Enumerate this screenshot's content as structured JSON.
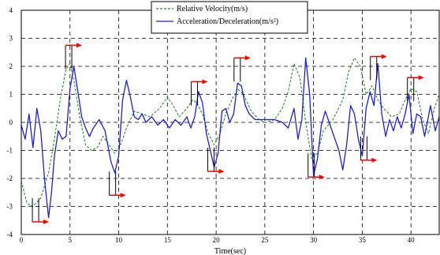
{
  "chart_data": {
    "type": "line",
    "xlabel": "Time(sec)",
    "ylabel": "",
    "xlim": [
      0,
      42.9
    ],
    "ylim": [
      -4,
      4
    ],
    "xticks": [
      0,
      5,
      10,
      15,
      20,
      25,
      30,
      35,
      40
    ],
    "yticks": [
      -4,
      -3,
      -2,
      -1,
      0,
      1,
      2,
      3,
      4
    ],
    "grid": true,
    "legend_position": "top-center",
    "series": [
      {
        "name": "Relative Velocity(m/s)",
        "color": "#2a8a2a",
        "style": "dashed",
        "points": [
          [
            0,
            -2.1
          ],
          [
            0.6,
            -2.9
          ],
          [
            1.2,
            -3.0
          ],
          [
            2.0,
            -2.7
          ],
          [
            2.8,
            -1.8
          ],
          [
            3.4,
            -0.6
          ],
          [
            4.0,
            0.8
          ],
          [
            4.6,
            1.9
          ],
          [
            5.0,
            2.1
          ],
          [
            5.4,
            1.5
          ],
          [
            6.0,
            0.2
          ],
          [
            6.6,
            -0.8
          ],
          [
            7.2,
            -1.0
          ],
          [
            7.8,
            -0.9
          ],
          [
            8.4,
            -0.5
          ],
          [
            9.0,
            -0.8
          ],
          [
            9.6,
            -1.1
          ],
          [
            10.2,
            -0.8
          ],
          [
            10.8,
            -0.2
          ],
          [
            11.6,
            0.4
          ],
          [
            12.4,
            0.3
          ],
          [
            13.2,
            0.2
          ],
          [
            14.2,
            0.5
          ],
          [
            15.0,
            0.9
          ],
          [
            15.6,
            0.6
          ],
          [
            16.2,
            0.2
          ],
          [
            17.0,
            0.5
          ],
          [
            17.6,
            0.8
          ],
          [
            18.0,
            0.7
          ],
          [
            18.6,
            0.3
          ],
          [
            19.2,
            -0.4
          ],
          [
            19.8,
            -0.8
          ],
          [
            20.4,
            -0.4
          ],
          [
            21.0,
            0.3
          ],
          [
            21.6,
            0.8
          ],
          [
            22.2,
            1.2
          ],
          [
            22.8,
            1.0
          ],
          [
            23.6,
            0.4
          ],
          [
            24.4,
            0.1
          ],
          [
            25.0,
            0.0
          ],
          [
            26.0,
            0.1
          ],
          [
            26.8,
            0.5
          ],
          [
            27.4,
            1.1
          ],
          [
            28.0,
            2.1
          ],
          [
            28.6,
            1.6
          ],
          [
            29.2,
            0.0
          ],
          [
            29.8,
            -1.3
          ],
          [
            30.4,
            -1.1
          ],
          [
            31.0,
            -0.3
          ],
          [
            32.0,
            0.1
          ],
          [
            33.0,
            0.8
          ],
          [
            33.6,
            1.8
          ],
          [
            34.2,
            2.3
          ],
          [
            34.8,
            2.0
          ],
          [
            35.4,
            1.0
          ],
          [
            36.0,
            1.3
          ],
          [
            36.6,
            0.8
          ],
          [
            37.2,
            0.5
          ],
          [
            38.0,
            0.2
          ],
          [
            38.8,
            0.3
          ],
          [
            39.4,
            0.8
          ],
          [
            40.0,
            1.2
          ],
          [
            40.6,
            1.1
          ],
          [
            41.2,
            0.1
          ],
          [
            41.8,
            -0.4
          ],
          [
            42.4,
            0.5
          ],
          [
            42.9,
            1.0
          ]
        ]
      },
      {
        "name": "Acceleration/Deceleration(m/s²)",
        "color": "#1f1fd0",
        "style": "solid",
        "points": [
          [
            0,
            -0.1
          ],
          [
            0.4,
            -0.6
          ],
          [
            0.8,
            0.3
          ],
          [
            1.2,
            -0.9
          ],
          [
            1.6,
            0.5
          ],
          [
            2.0,
            -0.3
          ],
          [
            2.4,
            -2.1
          ],
          [
            2.8,
            -3.4
          ],
          [
            3.1,
            -2.5
          ],
          [
            3.4,
            -1.2
          ],
          [
            3.8,
            -0.3
          ],
          [
            4.2,
            -0.6
          ],
          [
            4.6,
            -0.5
          ],
          [
            5.0,
            1.2
          ],
          [
            5.4,
            2.0
          ],
          [
            5.8,
            1.1
          ],
          [
            6.2,
            0.2
          ],
          [
            6.6,
            -0.2
          ],
          [
            7.0,
            -0.5
          ],
          [
            7.4,
            -0.2
          ],
          [
            8.0,
            0.1
          ],
          [
            8.6,
            -0.3
          ],
          [
            9.2,
            -1.4
          ],
          [
            9.6,
            -1.8
          ],
          [
            10.0,
            -1.2
          ],
          [
            10.4,
            0.8
          ],
          [
            10.8,
            1.5
          ],
          [
            11.2,
            0.9
          ],
          [
            11.6,
            0.2
          ],
          [
            12.0,
            0.1
          ],
          [
            12.4,
            0.3
          ],
          [
            12.8,
            0.0
          ],
          [
            13.4,
            0.2
          ],
          [
            14.0,
            -0.1
          ],
          [
            14.6,
            0.1
          ],
          [
            15.2,
            -0.2
          ],
          [
            15.8,
            0.1
          ],
          [
            16.4,
            -0.1
          ],
          [
            17.0,
            0.2
          ],
          [
            17.4,
            -0.2
          ],
          [
            17.8,
            0.2
          ],
          [
            18.2,
            1.1
          ],
          [
            18.6,
            0.7
          ],
          [
            19.0,
            -0.4
          ],
          [
            19.4,
            -1.0
          ],
          [
            19.8,
            -1.6
          ],
          [
            20.2,
            -1.1
          ],
          [
            20.6,
            0.4
          ],
          [
            21.0,
            0.5
          ],
          [
            21.4,
            0.0
          ],
          [
            21.8,
            0.3
          ],
          [
            22.2,
            1.4
          ],
          [
            22.6,
            1.3
          ],
          [
            23.0,
            0.6
          ],
          [
            23.4,
            0.3
          ],
          [
            24.0,
            0.1
          ],
          [
            25.0,
            0.1
          ],
          [
            26.0,
            0.1
          ],
          [
            26.8,
            0.0
          ],
          [
            27.4,
            -0.2
          ],
          [
            28.0,
            0.5
          ],
          [
            28.4,
            -0.6
          ],
          [
            28.8,
            0.1
          ],
          [
            29.2,
            2.3
          ],
          [
            29.6,
            1.0
          ],
          [
            30.0,
            -1.9
          ],
          [
            30.4,
            -1.3
          ],
          [
            30.8,
            -0.1
          ],
          [
            31.2,
            0.4
          ],
          [
            31.6,
            0.0
          ],
          [
            32.0,
            -0.4
          ],
          [
            32.6,
            -1.0
          ],
          [
            33.0,
            -1.7
          ],
          [
            33.4,
            -0.8
          ],
          [
            33.8,
            0.6
          ],
          [
            34.2,
            0.3
          ],
          [
            34.6,
            -0.6
          ],
          [
            35.0,
            -1.2
          ],
          [
            35.4,
            0.5
          ],
          [
            35.8,
            1.1
          ],
          [
            36.2,
            0.6
          ],
          [
            36.6,
            2.1
          ],
          [
            37.0,
            0.3
          ],
          [
            37.4,
            -0.5
          ],
          [
            37.8,
            0.1
          ],
          [
            38.2,
            -0.3
          ],
          [
            38.6,
            0.2
          ],
          [
            39.0,
            -0.2
          ],
          [
            39.4,
            0.3
          ],
          [
            39.8,
            1.0
          ],
          [
            40.2,
            -0.4
          ],
          [
            40.6,
            0.3
          ],
          [
            41.0,
            0.2
          ],
          [
            41.4,
            -0.5
          ],
          [
            42.0,
            0.6
          ],
          [
            42.5,
            -0.3
          ],
          [
            42.9,
            0.2
          ]
        ]
      }
    ],
    "annotations": [
      {
        "x": 4.7,
        "y": 2.75,
        "label": ""
      },
      {
        "x": 1.3,
        "y": -3.55,
        "label": ""
      },
      {
        "x": 9.2,
        "y": -2.6,
        "label": ""
      },
      {
        "x": 17.6,
        "y": 1.45,
        "label": ""
      },
      {
        "x": 19.3,
        "y": -1.75,
        "label": ""
      },
      {
        "x": 22.0,
        "y": 2.3,
        "label": ""
      },
      {
        "x": 29.6,
        "y": -1.95,
        "label": ""
      },
      {
        "x": 35.0,
        "y": -1.35,
        "label": ""
      },
      {
        "x": 36.0,
        "y": 2.35,
        "label": ""
      },
      {
        "x": 39.8,
        "y": 1.6,
        "label": ""
      }
    ]
  },
  "colors": {
    "grid": "#000000",
    "arrow": "#ff0000",
    "bracket": "#000000"
  }
}
